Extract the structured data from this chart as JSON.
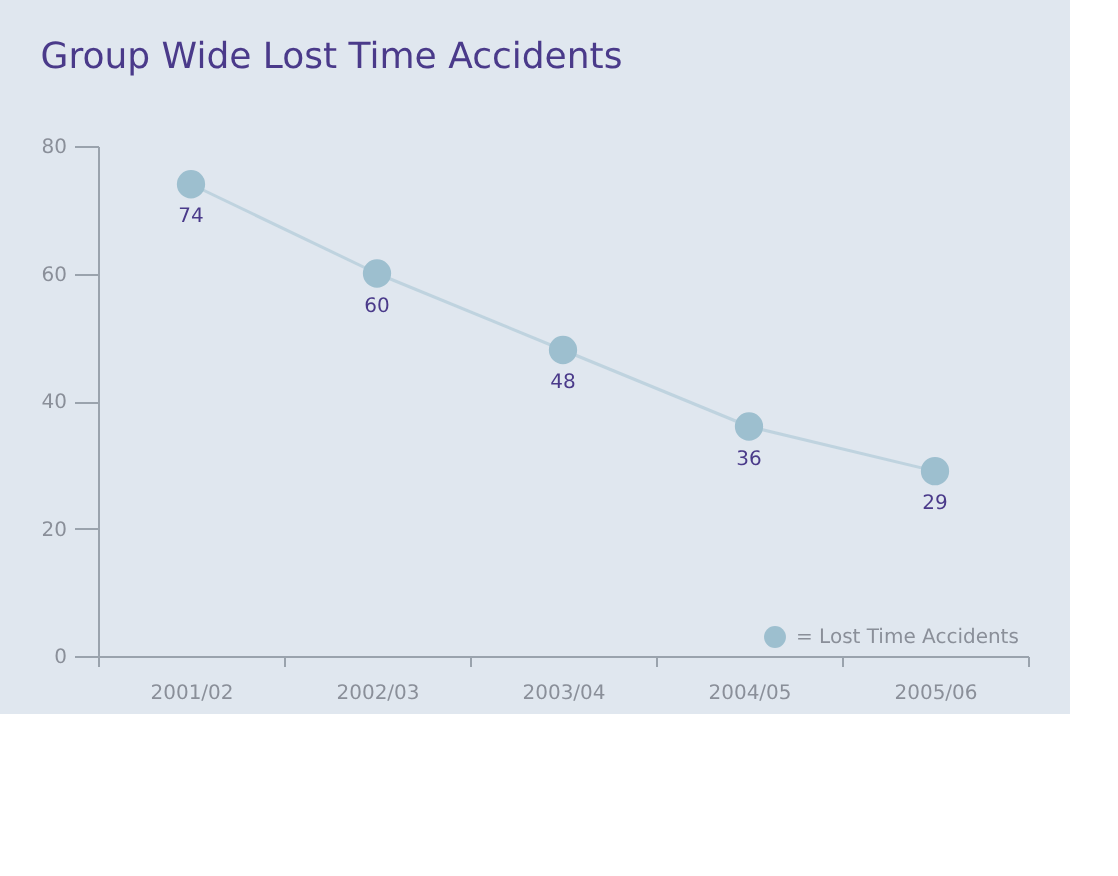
{
  "chart_data": {
    "type": "line",
    "title": "Group Wide Lost Time Accidents",
    "categories": [
      "2001/02",
      "2002/03",
      "2003/04",
      "2004/05",
      "2005/06"
    ],
    "series": [
      {
        "name": "= Lost Time Accidents",
        "color": "#9dbfcf",
        "values": [
          74,
          60,
          48,
          36,
          29
        ]
      }
    ],
    "ylim": [
      0,
      80
    ],
    "yticks": [
      0,
      20,
      40,
      60,
      80
    ],
    "grid": false,
    "marker": "circle",
    "line_style": "solid",
    "data_labels": true,
    "legend": "bottom right"
  }
}
